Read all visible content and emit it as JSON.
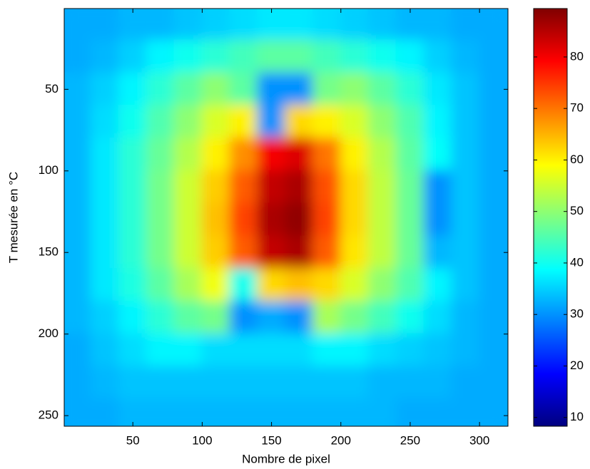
{
  "chart_data": {
    "type": "heatmap",
    "x_label": "Nombre de pixel",
    "y_label": "T mesurée en °C",
    "x": [
      10,
      30,
      50,
      70,
      90,
      110,
      130,
      150,
      170,
      190,
      210,
      230,
      250,
      270,
      290,
      310
    ],
    "y": [
      10,
      30,
      50,
      70,
      90,
      110,
      130,
      150,
      170,
      190,
      210,
      230,
      250
    ],
    "values": [
      [
        32,
        32,
        33,
        33,
        34,
        35,
        36,
        37,
        37,
        36,
        35,
        34,
        33,
        33,
        32,
        32
      ],
      [
        32,
        33,
        35,
        38,
        40,
        42,
        44,
        46,
        46,
        44,
        42,
        40,
        38,
        35,
        33,
        32
      ],
      [
        33,
        35,
        38,
        42,
        46,
        50,
        46,
        30,
        30,
        48,
        50,
        46,
        42,
        37,
        34,
        32
      ],
      [
        33,
        36,
        40,
        45,
        50,
        56,
        60,
        30,
        62,
        60,
        56,
        50,
        45,
        38,
        34,
        32
      ],
      [
        33,
        37,
        42,
        47,
        53,
        60,
        68,
        80,
        82,
        70,
        60,
        53,
        46,
        39,
        34,
        32
      ],
      [
        33,
        37,
        42,
        48,
        55,
        63,
        72,
        84,
        86,
        73,
        62,
        54,
        47,
        30,
        34,
        32
      ],
      [
        33,
        37,
        42,
        48,
        55,
        64,
        74,
        86,
        88,
        74,
        62,
        54,
        47,
        30,
        34,
        32
      ],
      [
        33,
        37,
        42,
        48,
        55,
        63,
        72,
        84,
        86,
        72,
        61,
        54,
        47,
        33,
        34,
        32
      ],
      [
        33,
        37,
        41,
        46,
        52,
        58,
        40,
        62,
        64,
        62,
        56,
        50,
        45,
        38,
        34,
        32
      ],
      [
        33,
        35,
        38,
        42,
        46,
        48,
        30,
        32,
        30,
        52,
        48,
        44,
        40,
        36,
        33,
        32
      ],
      [
        32,
        34,
        36,
        38,
        38,
        36,
        36,
        36,
        36,
        38,
        38,
        36,
        35,
        34,
        33,
        32
      ],
      [
        32,
        33,
        34,
        34,
        34,
        34,
        34,
        34,
        34,
        34,
        34,
        33,
        33,
        33,
        32,
        32
      ],
      [
        32,
        32,
        33,
        33,
        33,
        33,
        33,
        33,
        33,
        33,
        33,
        33,
        32,
        32,
        32,
        32
      ]
    ],
    "colormap": "jet",
    "xlim": [
      0.5,
      320.5
    ],
    "xticks": [
      50,
      100,
      150,
      200,
      250,
      300
    ],
    "ylim": [
      0.5,
      256.5
    ],
    "yticks": [
      50,
      100,
      150,
      200,
      250
    ],
    "y_reversed": true,
    "clim": [
      8.3,
      89.4
    ],
    "cticks": [
      10,
      20,
      30,
      40,
      50,
      60,
      70,
      80
    ]
  }
}
